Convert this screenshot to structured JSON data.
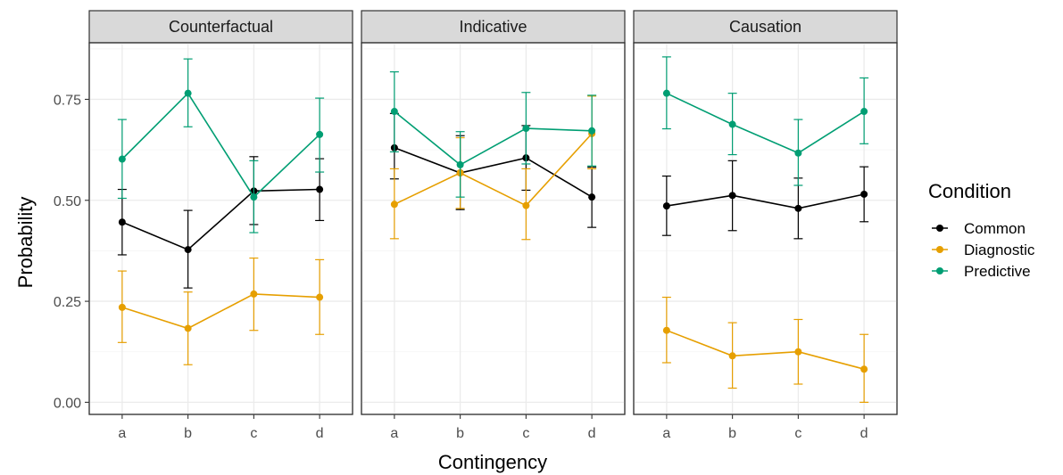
{
  "chart_data": {
    "type": "line",
    "facets": [
      "Counterfactual",
      "Indicative",
      "Causation"
    ],
    "categories": [
      "a",
      "b",
      "c",
      "d"
    ],
    "xlabel": "Contingency",
    "ylabel": "Probability",
    "ylim": [
      -0.03,
      0.89
    ],
    "yticks": [
      "0.00",
      "0.25",
      "0.50",
      "0.75"
    ],
    "ytick_values": [
      0,
      0.25,
      0.5,
      0.75
    ],
    "grid": true,
    "legend": {
      "title": "Condition",
      "placement": "right"
    },
    "series": [
      {
        "name": "Common",
        "color": "#000000",
        "panels": [
          {
            "values": [
              0.446,
              0.378,
              0.523,
              0.527
            ],
            "lower": [
              0.365,
              0.283,
              0.44,
              0.45
            ],
            "upper": [
              0.527,
              0.475,
              0.608,
              0.603
            ]
          },
          {
            "values": [
              0.63,
              0.568,
              0.605,
              0.508
            ],
            "lower": [
              0.553,
              0.477,
              0.525,
              0.433
            ],
            "upper": [
              0.715,
              0.66,
              0.685,
              0.582
            ]
          },
          {
            "values": [
              0.486,
              0.512,
              0.48,
              0.515
            ],
            "lower": [
              0.413,
              0.425,
              0.405,
              0.447
            ],
            "upper": [
              0.56,
              0.598,
              0.555,
              0.583
            ]
          }
        ]
      },
      {
        "name": "Diagnostic",
        "color": "#E69F00",
        "panels": [
          {
            "values": [
              0.235,
              0.183,
              0.268,
              0.26
            ],
            "lower": [
              0.148,
              0.093,
              0.178,
              0.168
            ],
            "upper": [
              0.325,
              0.273,
              0.357,
              0.353
            ]
          },
          {
            "values": [
              0.49,
              0.568,
              0.487,
              0.665
            ],
            "lower": [
              0.405,
              0.48,
              0.403,
              0.578
            ],
            "upper": [
              0.578,
              0.655,
              0.578,
              0.758
            ]
          },
          {
            "values": [
              0.178,
              0.115,
              0.125,
              0.082
            ],
            "lower": [
              0.098,
              0.035,
              0.045,
              0.0
            ],
            "upper": [
              0.26,
              0.197,
              0.205,
              0.168
            ]
          }
        ]
      },
      {
        "name": "Predictive",
        "color": "#009E73",
        "panels": [
          {
            "values": [
              0.602,
              0.765,
              0.508,
              0.663
            ],
            "lower": [
              0.505,
              0.682,
              0.42,
              0.57
            ],
            "upper": [
              0.7,
              0.85,
              0.598,
              0.753
            ]
          },
          {
            "values": [
              0.72,
              0.588,
              0.678,
              0.672
            ],
            "lower": [
              0.62,
              0.508,
              0.59,
              0.585
            ],
            "upper": [
              0.818,
              0.67,
              0.767,
              0.76
            ]
          },
          {
            "values": [
              0.765,
              0.688,
              0.617,
              0.72
            ],
            "lower": [
              0.677,
              0.613,
              0.537,
              0.64
            ],
            "upper": [
              0.855,
              0.765,
              0.7,
              0.803
            ]
          }
        ]
      }
    ]
  }
}
